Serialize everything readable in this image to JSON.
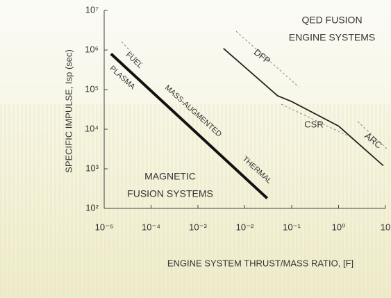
{
  "chart_data": {
    "type": "line",
    "xlabel": "ENGINE SYSTEM THRUST/MASS RATIO, [F]",
    "ylabel": "SPECIFIC IMPULSE, Isp (sec)",
    "xscale": "log",
    "yscale": "log",
    "xlim": [
      1e-05,
      10
    ],
    "ylim": [
      100,
      10000000
    ],
    "xticks": [
      {
        "value": 1e-05,
        "label": "10⁻⁵"
      },
      {
        "value": 0.0001,
        "label": "10⁻⁴"
      },
      {
        "value": 0.001,
        "label": "10⁻³"
      },
      {
        "value": 0.01,
        "label": "10⁻²"
      },
      {
        "value": 0.1,
        "label": "10⁻¹"
      },
      {
        "value": 1,
        "label": "10⁰"
      },
      {
        "value": 10,
        "label": "10"
      }
    ],
    "yticks": [
      {
        "value": 100,
        "label": "10²"
      },
      {
        "value": 1000,
        "label": "10³"
      },
      {
        "value": 10000,
        "label": "10⁴"
      },
      {
        "value": 100000,
        "label": "10⁵"
      },
      {
        "value": 1000000,
        "label": "10⁶"
      },
      {
        "value": 10000000,
        "label": "10⁷"
      }
    ],
    "series": [
      {
        "color": "#111111",
        "x": [
          1.4e-05,
          0.03
        ],
        "values": [
          800000,
          180
        ]
      },
      {
        "color": "#222222",
        "x": [
          0.0035,
          0.05,
          0.1,
          1,
          9
        ],
        "values": [
          1100000,
          70000,
          50000,
          12000,
          1200
        ]
      }
    ],
    "annotations": [
      [
        "QED FUSION",
        "ENGINE SYSTEMS"
      ],
      [
        "MAGNETIC",
        "FUSION SYSTEMS"
      ],
      [
        "FUEL"
      ],
      [
        "PLASMA"
      ],
      [
        "MASS-AUGMENTED"
      ],
      [
        "THERMAL"
      ],
      [
        "DFP"
      ],
      [
        "CSR"
      ],
      [
        "ARC"
      ]
    ]
  }
}
